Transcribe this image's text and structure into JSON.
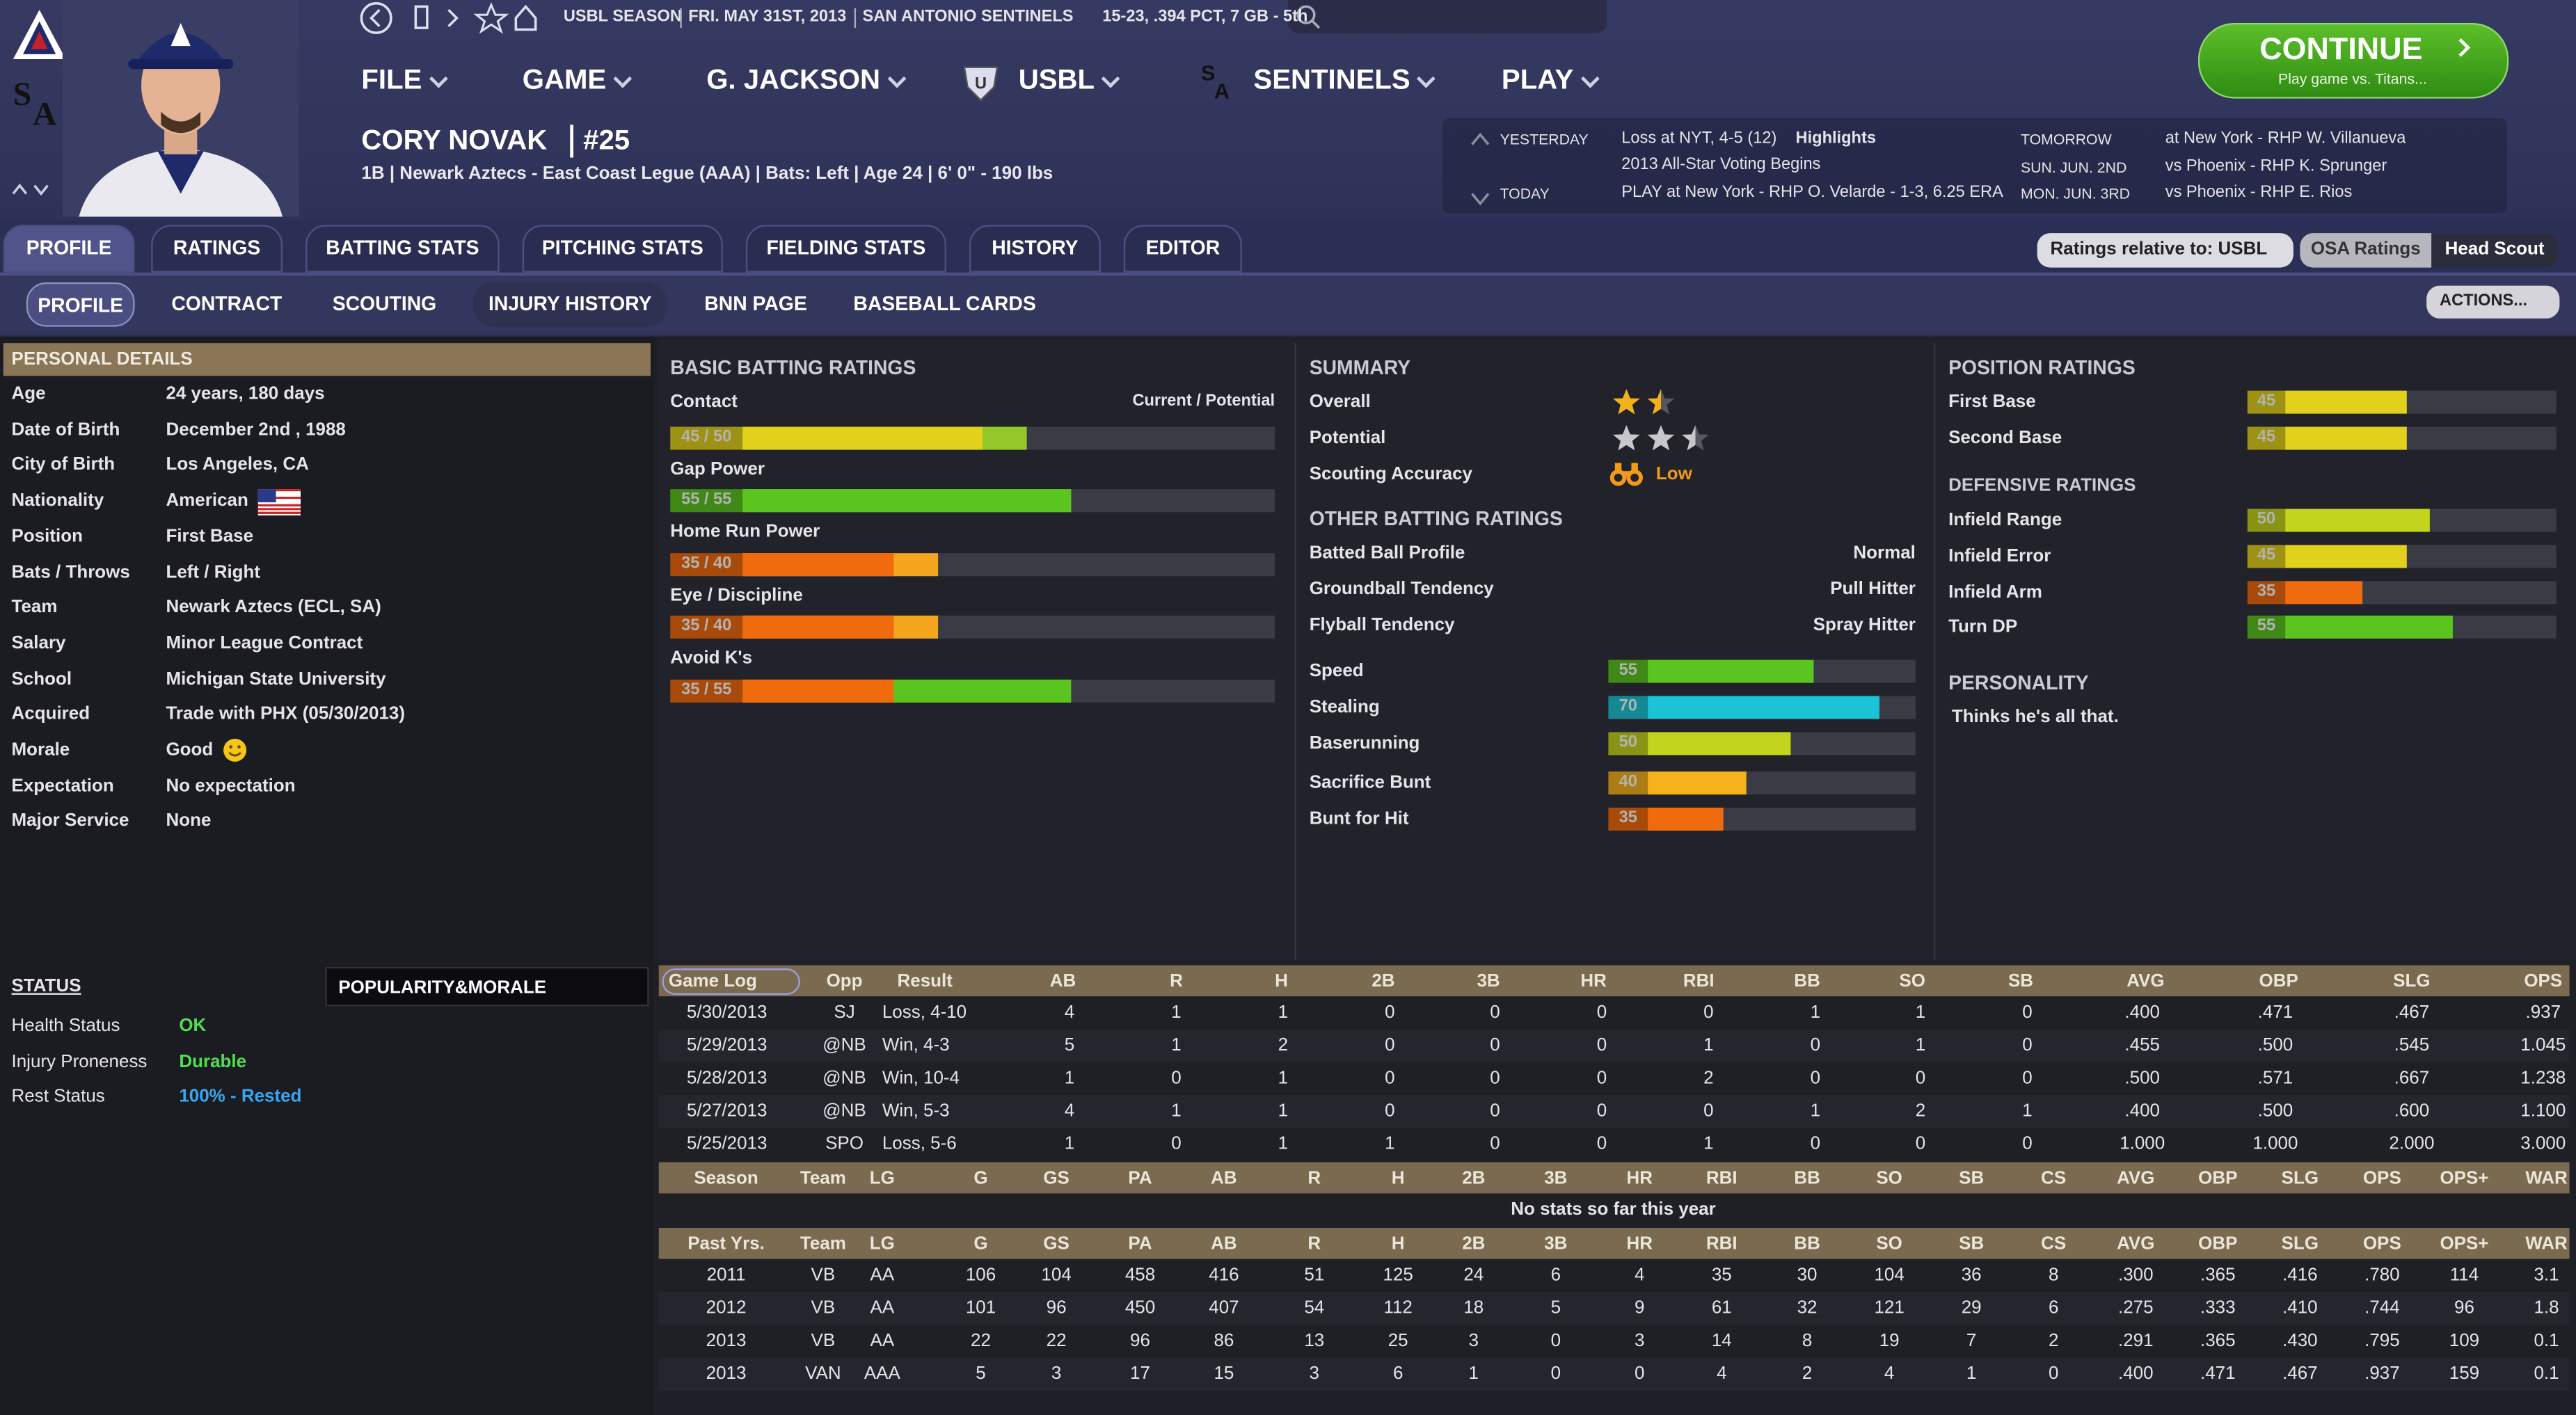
{
  "top_bar": {
    "season": "USBL SEASON",
    "date": "FRI. MAY 31ST, 2013",
    "team": "SAN ANTONIO SENTINELS",
    "record": "15-23, .394 PCT, 7 GB - 5th"
  },
  "menu": [
    "FILE",
    "GAME",
    "G. JACKSON",
    "USBL",
    "SENTINELS",
    "PLAY"
  ],
  "continue": {
    "label": "CONTINUE",
    "sub": "Play game vs. Titans..."
  },
  "player": {
    "name": "CORY NOVAK",
    "number": "#25",
    "info": "1B | Newark Aztecs - East Coast Legue (AAA) | Bats: Left | Age 24 | 6' 0\" - 190 lbs"
  },
  "schedule": {
    "yesterday": {
      "label": "YESTERDAY",
      "result": "Loss at NYT, 4-5 (12)",
      "link": "Highlights",
      "note": "2013 All-Star Voting Begins"
    },
    "today": {
      "label": "TODAY",
      "text": "PLAY at New York - RHP O. Velarde - 1-3, 6.25 ERA"
    },
    "upcoming": [
      [
        "TOMORROW",
        "at New York - RHP W. Villanueva"
      ],
      [
        "SUN. JUN. 2ND",
        "vs Phoenix - RHP K. Sprunger"
      ],
      [
        "MON. JUN. 3RD",
        "vs Phoenix - RHP E. Rios"
      ]
    ]
  },
  "tabs": [
    "PROFILE",
    "RATINGS",
    "BATTING STATS",
    "PITCHING STATS",
    "FIELDING STATS",
    "HISTORY",
    "EDITOR"
  ],
  "subtabs": [
    "PROFILE",
    "CONTRACT",
    "SCOUTING",
    "INJURY HISTORY",
    "BNN PAGE",
    "BASEBALL CARDS"
  ],
  "controls": {
    "ratings_relative": "Ratings relative to: USBL",
    "osa": "OSA Ratings",
    "scout": "Head Scout",
    "actions": "ACTIONS..."
  },
  "personal": {
    "title": "PERSONAL DETAILS",
    "rows": [
      [
        "Age",
        "24 years, 180 days"
      ],
      [
        "Date of Birth",
        "December 2nd , 1988"
      ],
      [
        "City of Birth",
        "Los Angeles, CA"
      ],
      [
        "Nationality",
        "American"
      ],
      [
        "Position",
        "First Base"
      ],
      [
        "Bats / Throws",
        "Left / Right"
      ],
      [
        "Team",
        "Newark Aztecs (ECL, SA)"
      ],
      [
        "Salary",
        "Minor League Contract"
      ],
      [
        "School",
        "Michigan State University"
      ],
      [
        "Acquired",
        "Trade with PHX (05/30/2013)"
      ],
      [
        "Morale",
        "Good"
      ],
      [
        "Expectation",
        "No expectation"
      ],
      [
        "Major Service",
        "None"
      ]
    ]
  },
  "batting": {
    "title": "BASIC BATTING RATINGS",
    "legend": "Current / Potential",
    "scale": [
      18,
      78
    ],
    "ratings": [
      {
        "label": "Contact",
        "current": 45,
        "potential": 50,
        "value_label": "45 / 50",
        "current_color": "#e2d11c",
        "potential_color": "#93c82a"
      },
      {
        "label": "Gap Power",
        "current": 55,
        "potential": 55,
        "value_label": "55 / 55",
        "current_color": "#5bc41f",
        "potential_color": "#5bc41f"
      },
      {
        "label": "Home Run Power",
        "current": 35,
        "potential": 40,
        "value_label": "35 / 40",
        "current_color": "#f06a0e",
        "potential_color": "#f6a51f"
      },
      {
        "label": "Eye / Discipline",
        "current": 35,
        "potential": 40,
        "value_label": "35 / 40",
        "current_color": "#f06a0e",
        "potential_color": "#f6a51f"
      },
      {
        "label": "Avoid K's",
        "current": 35,
        "potential": 55,
        "value_label": "35 / 55",
        "current_color": "#f06a0e",
        "potential_color": "#5bc41f"
      }
    ]
  },
  "summary": {
    "title": "SUMMARY",
    "rows": [
      {
        "label": "Overall",
        "stars": 1.5,
        "color": "#f2b21c"
      },
      {
        "label": "Potential",
        "stars": 2.5,
        "color": "#c8c8cc"
      }
    ],
    "accuracy": {
      "label": "Scouting Accuracy",
      "value": "Low"
    }
  },
  "other": {
    "title": "OTHER BATTING RATINGS",
    "rows": [
      [
        "Batted Ball Profile",
        "Normal"
      ],
      [
        "Groundball Tendency",
        "Pull Hitter"
      ],
      [
        "Flyball Tendency",
        "Spray Hitter"
      ]
    ],
    "scale": [
      18,
      78
    ],
    "ratings": [
      {
        "label": "Speed",
        "value": 55,
        "color": "#5bc41f"
      },
      {
        "label": "Stealing",
        "value": 70,
        "color": "#1cc3d4"
      },
      {
        "label": "Baserunning",
        "value": 50,
        "color": "#c3d41c"
      },
      {
        "label": "Sacrifice Bunt",
        "value": 40,
        "color": "#f6b21c"
      },
      {
        "label": "Bunt for Hit",
        "value": 35,
        "color": "#f06a0e"
      }
    ]
  },
  "position": {
    "title": "POSITION RATINGS",
    "scale": [
      18,
      78
    ],
    "ratings": [
      {
        "label": "First Base",
        "value": 45,
        "color": "#e2d11c"
      },
      {
        "label": "Second Base",
        "value": 45,
        "color": "#e2d11c"
      }
    ],
    "defensive_title": "DEFENSIVE RATINGS",
    "defensive": [
      {
        "label": "Infield Range",
        "value": 50,
        "color": "#c3d41c"
      },
      {
        "label": "Infield Error",
        "value": 45,
        "color": "#e2d11c"
      },
      {
        "label": "Infield Arm",
        "value": 35,
        "color": "#f06a0e"
      },
      {
        "label": "Turn DP",
        "value": 55,
        "color": "#5bc41f"
      }
    ]
  },
  "personality": {
    "title": "PERSONALITY",
    "text": "Thinks he's all that."
  },
  "status": {
    "title": "STATUS",
    "tab": "POPULARITY&MORALE",
    "rows": [
      {
        "label": "Health Status",
        "value": "OK",
        "color": "#4fe04f"
      },
      {
        "label": "Injury Proneness",
        "value": "Durable",
        "color": "#4fe04f"
      },
      {
        "label": "Rest Status",
        "value": "100% - Rested",
        "color": "#3aa6f0"
      }
    ]
  },
  "game_log": {
    "columns": [
      "Game Log",
      "Opp",
      "Result",
      "AB",
      "R",
      "H",
      "2B",
      "3B",
      "HR",
      "RBI",
      "BB",
      "SO",
      "SB",
      "AVG",
      "OBP",
      "SLG",
      "OPS"
    ],
    "rows": [
      [
        "5/30/2013",
        "SJ",
        "Loss, 4-10",
        "4",
        "1",
        "1",
        "0",
        "0",
        "0",
        "0",
        "1",
        "1",
        "0",
        ".400",
        ".471",
        ".467",
        ".937"
      ],
      [
        "5/29/2013",
        "@NB",
        "Win, 4-3",
        "5",
        "1",
        "2",
        "0",
        "0",
        "0",
        "1",
        "0",
        "1",
        "0",
        ".455",
        ".500",
        ".545",
        "1.045"
      ],
      [
        "5/28/2013",
        "@NB",
        "Win, 10-4",
        "1",
        "0",
        "1",
        "0",
        "0",
        "0",
        "2",
        "0",
        "0",
        "0",
        ".500",
        ".571",
        ".667",
        "1.238"
      ],
      [
        "5/27/2013",
        "@NB",
        "Win, 5-3",
        "4",
        "1",
        "1",
        "0",
        "0",
        "0",
        "0",
        "1",
        "2",
        "1",
        ".400",
        ".500",
        ".600",
        "1.100"
      ],
      [
        "5/25/2013",
        "SPO",
        "Loss, 5-6",
        "1",
        "0",
        "1",
        "1",
        "0",
        "0",
        "1",
        "0",
        "0",
        "0",
        "1.000",
        "1.000",
        "2.000",
        "3.000"
      ]
    ]
  },
  "season": {
    "columns": [
      "Season",
      "Team",
      "LG",
      "G",
      "GS",
      "PA",
      "AB",
      "R",
      "H",
      "2B",
      "3B",
      "HR",
      "RBI",
      "BB",
      "SO",
      "SB",
      "CS",
      "AVG",
      "OBP",
      "SLG",
      "OPS",
      "OPS+",
      "WAR"
    ],
    "message": "No stats so far this year"
  },
  "past": {
    "columns": [
      "Past Yrs.",
      "Team",
      "LG",
      "G",
      "GS",
      "PA",
      "AB",
      "R",
      "H",
      "2B",
      "3B",
      "HR",
      "RBI",
      "BB",
      "SO",
      "SB",
      "CS",
      "AVG",
      "OBP",
      "SLG",
      "OPS",
      "OPS+",
      "WAR"
    ],
    "rows": [
      [
        "2011",
        "VB",
        "AA",
        "106",
        "104",
        "458",
        "416",
        "51",
        "125",
        "24",
        "6",
        "4",
        "35",
        "30",
        "104",
        "36",
        "8",
        ".300",
        ".365",
        ".416",
        ".780",
        "114",
        "3.1"
      ],
      [
        "2012",
        "VB",
        "AA",
        "101",
        "96",
        "450",
        "407",
        "54",
        "112",
        "18",
        "5",
        "9",
        "61",
        "32",
        "121",
        "29",
        "6",
        ".275",
        ".333",
        ".410",
        ".744",
        "96",
        "1.8"
      ],
      [
        "2013",
        "VB",
        "AA",
        "22",
        "22",
        "96",
        "86",
        "13",
        "25",
        "3",
        "0",
        "3",
        "14",
        "8",
        "19",
        "7",
        "2",
        ".291",
        ".365",
        ".430",
        ".795",
        "109",
        "0.1"
      ],
      [
        "2013",
        "VAN",
        "AAA",
        "5",
        "3",
        "17",
        "15",
        "3",
        "6",
        "1",
        "0",
        "0",
        "4",
        "2",
        "4",
        "1",
        "0",
        ".400",
        ".471",
        ".467",
        ".937",
        "159",
        "0.1"
      ]
    ]
  }
}
